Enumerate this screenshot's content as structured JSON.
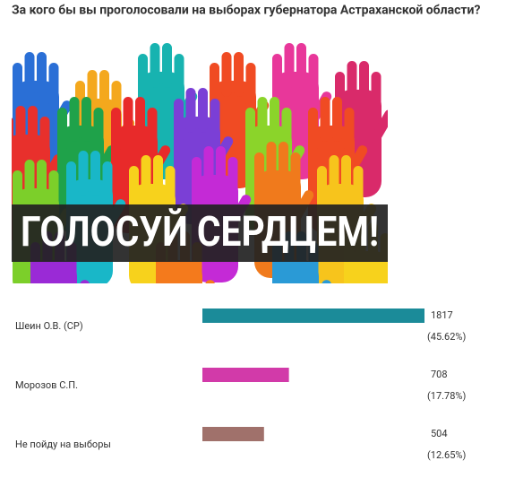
{
  "title": "За кого бы вы проголосовали на выборах губернатора Астраханской области?",
  "banner": "ГОЛОСУЙ СЕРДЦЕМ!",
  "options": [
    {
      "name": "Шеин О.В. (СР)",
      "votes": 1817,
      "percent": "(45.62%)",
      "color": "#1b8b99"
    },
    {
      "name": "Морозов С.П.",
      "votes": 708,
      "percent": "(17.78%)",
      "color": "#d23aa9"
    },
    {
      "name": "Не пойду на выборы",
      "votes": 504,
      "percent": "(12.65%)",
      "color": "#a0716b"
    }
  ]
}
